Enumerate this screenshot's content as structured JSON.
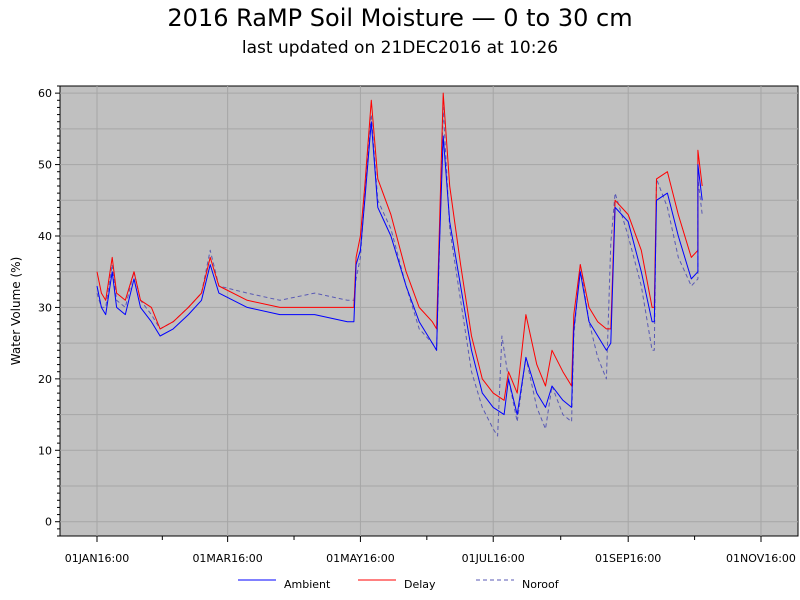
{
  "chart_data": {
    "type": "line",
    "title": "2016 RaMP Soil Moisture — 0 to 30 cm",
    "subtitle": "last updated on 21DEC2016 at 10:26",
    "ylabel": "Water Volume (%)",
    "xlabel": "",
    "xlim": [
      "2015-12-15",
      "2016-11-18"
    ],
    "ylim": [
      -2,
      61
    ],
    "yticks": [
      0,
      10,
      20,
      30,
      40,
      50,
      60
    ],
    "xticks": [
      {
        "date": "2016-01-01",
        "label": "01JAN16:00"
      },
      {
        "date": "2016-03-01",
        "label": "01MAR16:00"
      },
      {
        "date": "2016-05-01",
        "label": "01MAY16:00"
      },
      {
        "date": "2016-07-01",
        "label": "01JUL16:00"
      },
      {
        "date": "2016-09-01",
        "label": "01SEP16:00"
      },
      {
        "date": "2016-11-01",
        "label": "01NOV16:00"
      }
    ],
    "grid": true,
    "legend_position": "bottom",
    "background": "#c0c0c0",
    "series": [
      {
        "name": "Ambient",
        "color": "#0000ff",
        "style": "solid",
        "points": [
          [
            "2016-01-01",
            33
          ],
          [
            "2016-01-03",
            30
          ],
          [
            "2016-01-05",
            29
          ],
          [
            "2016-01-08",
            35
          ],
          [
            "2016-01-10",
            30
          ],
          [
            "2016-01-14",
            29
          ],
          [
            "2016-01-18",
            34
          ],
          [
            "2016-01-21",
            30
          ],
          [
            "2016-01-26",
            28
          ],
          [
            "2016-01-30",
            26
          ],
          [
            "2016-02-05",
            27
          ],
          [
            "2016-02-12",
            29
          ],
          [
            "2016-02-18",
            31
          ],
          [
            "2016-02-22",
            36
          ],
          [
            "2016-02-26",
            32
          ],
          [
            "2016-03-10",
            30
          ],
          [
            "2016-03-25",
            29
          ],
          [
            "2016-04-10",
            29
          ],
          [
            "2016-04-25",
            28
          ],
          [
            "2016-04-28",
            28
          ],
          [
            "2016-04-29",
            36
          ],
          [
            "2016-05-01",
            38
          ],
          [
            "2016-05-03",
            45
          ],
          [
            "2016-05-06",
            56
          ],
          [
            "2016-05-09",
            44
          ],
          [
            "2016-05-15",
            40
          ],
          [
            "2016-05-22",
            33
          ],
          [
            "2016-05-28",
            28
          ],
          [
            "2016-06-03",
            25
          ],
          [
            "2016-06-05",
            24
          ],
          [
            "2016-06-06",
            36
          ],
          [
            "2016-06-08",
            54
          ],
          [
            "2016-06-11",
            42
          ],
          [
            "2016-06-16",
            33
          ],
          [
            "2016-06-21",
            24
          ],
          [
            "2016-06-26",
            18
          ],
          [
            "2016-07-01",
            16
          ],
          [
            "2016-07-06",
            15
          ],
          [
            "2016-07-08",
            20
          ],
          [
            "2016-07-12",
            15
          ],
          [
            "2016-07-16",
            23
          ],
          [
            "2016-07-21",
            18
          ],
          [
            "2016-07-25",
            16
          ],
          [
            "2016-07-28",
            19
          ],
          [
            "2016-08-02",
            17
          ],
          [
            "2016-08-06",
            16
          ],
          [
            "2016-08-07",
            27
          ],
          [
            "2016-08-10",
            35
          ],
          [
            "2016-08-14",
            28
          ],
          [
            "2016-08-18",
            26
          ],
          [
            "2016-08-22",
            24
          ],
          [
            "2016-08-24",
            25
          ],
          [
            "2016-08-26",
            44
          ],
          [
            "2016-09-01",
            42
          ],
          [
            "2016-09-07",
            35
          ],
          [
            "2016-09-12",
            28
          ],
          [
            "2016-09-13",
            28
          ],
          [
            "2016-09-14",
            45
          ],
          [
            "2016-09-19",
            46
          ],
          [
            "2016-09-24",
            40
          ],
          [
            "2016-09-30",
            34
          ],
          [
            "2016-10-03",
            35
          ],
          [
            "2016-10-03",
            50
          ],
          [
            "2016-10-05",
            45
          ]
        ]
      },
      {
        "name": "Delay",
        "color": "#ff0000",
        "style": "solid",
        "points": [
          [
            "2016-01-01",
            35
          ],
          [
            "2016-01-03",
            32
          ],
          [
            "2016-01-05",
            31
          ],
          [
            "2016-01-08",
            37
          ],
          [
            "2016-01-10",
            32
          ],
          [
            "2016-01-14",
            31
          ],
          [
            "2016-01-18",
            35
          ],
          [
            "2016-01-21",
            31
          ],
          [
            "2016-01-26",
            30
          ],
          [
            "2016-01-30",
            27
          ],
          [
            "2016-02-05",
            28
          ],
          [
            "2016-02-12",
            30
          ],
          [
            "2016-02-18",
            32
          ],
          [
            "2016-02-22",
            37
          ],
          [
            "2016-02-26",
            33
          ],
          [
            "2016-03-10",
            31
          ],
          [
            "2016-03-25",
            30
          ],
          [
            "2016-04-10",
            30
          ],
          [
            "2016-04-25",
            30
          ],
          [
            "2016-04-28",
            30
          ],
          [
            "2016-04-29",
            37
          ],
          [
            "2016-05-01",
            40
          ],
          [
            "2016-05-03",
            47
          ],
          [
            "2016-05-06",
            59
          ],
          [
            "2016-05-09",
            48
          ],
          [
            "2016-05-15",
            43
          ],
          [
            "2016-05-22",
            35
          ],
          [
            "2016-05-28",
            30
          ],
          [
            "2016-06-03",
            28
          ],
          [
            "2016-06-05",
            27
          ],
          [
            "2016-06-06",
            38
          ],
          [
            "2016-06-08",
            60
          ],
          [
            "2016-06-11",
            47
          ],
          [
            "2016-06-16",
            36
          ],
          [
            "2016-06-21",
            26
          ],
          [
            "2016-06-26",
            20
          ],
          [
            "2016-07-01",
            18
          ],
          [
            "2016-07-06",
            17
          ],
          [
            "2016-07-08",
            21
          ],
          [
            "2016-07-12",
            18
          ],
          [
            "2016-07-16",
            29
          ],
          [
            "2016-07-21",
            22
          ],
          [
            "2016-07-25",
            19
          ],
          [
            "2016-07-28",
            24
          ],
          [
            "2016-08-02",
            21
          ],
          [
            "2016-08-06",
            19
          ],
          [
            "2016-08-07",
            29
          ],
          [
            "2016-08-10",
            36
          ],
          [
            "2016-08-14",
            30
          ],
          [
            "2016-08-18",
            28
          ],
          [
            "2016-08-22",
            27
          ],
          [
            "2016-08-24",
            27
          ],
          [
            "2016-08-26",
            45
          ],
          [
            "2016-09-01",
            43
          ],
          [
            "2016-09-07",
            38
          ],
          [
            "2016-09-12",
            30
          ],
          [
            "2016-09-13",
            30
          ],
          [
            "2016-09-14",
            48
          ],
          [
            "2016-09-19",
            49
          ],
          [
            "2016-09-24",
            43
          ],
          [
            "2016-09-30",
            37
          ],
          [
            "2016-10-03",
            38
          ],
          [
            "2016-10-03",
            52
          ],
          [
            "2016-10-05",
            47
          ]
        ]
      },
      {
        "name": "Noroof",
        "color": "#5a5ab4",
        "style": "dashed",
        "points": [
          [
            "2016-01-01",
            32
          ],
          [
            "2016-01-03",
            30
          ],
          [
            "2016-01-05",
            30
          ],
          [
            "2016-01-08",
            36
          ],
          [
            "2016-01-10",
            31
          ],
          [
            "2016-01-14",
            30
          ],
          [
            "2016-01-18",
            35
          ],
          [
            "2016-01-21",
            31
          ],
          [
            "2016-01-26",
            29
          ],
          [
            "2016-01-30",
            27
          ],
          [
            "2016-02-05",
            28
          ],
          [
            "2016-02-12",
            30
          ],
          [
            "2016-02-18",
            32
          ],
          [
            "2016-02-22",
            38
          ],
          [
            "2016-02-26",
            33
          ],
          [
            "2016-03-10",
            32
          ],
          [
            "2016-03-25",
            31
          ],
          [
            "2016-04-10",
            32
          ],
          [
            "2016-04-25",
            31
          ],
          [
            "2016-04-28",
            31
          ],
          [
            "2016-04-29",
            34
          ],
          [
            "2016-05-01",
            37
          ],
          [
            "2016-05-03",
            46
          ],
          [
            "2016-05-06",
            57
          ],
          [
            "2016-05-09",
            45
          ],
          [
            "2016-05-15",
            41
          ],
          [
            "2016-05-22",
            33
          ],
          [
            "2016-05-28",
            27
          ],
          [
            "2016-06-03",
            25
          ],
          [
            "2016-06-05",
            24
          ],
          [
            "2016-06-06",
            35
          ],
          [
            "2016-06-08",
            58
          ],
          [
            "2016-06-11",
            41
          ],
          [
            "2016-06-16",
            31
          ],
          [
            "2016-06-21",
            21
          ],
          [
            "2016-06-26",
            16
          ],
          [
            "2016-07-01",
            13
          ],
          [
            "2016-07-03",
            12
          ],
          [
            "2016-07-05",
            26
          ],
          [
            "2016-07-08",
            20
          ],
          [
            "2016-07-12",
            14
          ],
          [
            "2016-07-16",
            23
          ],
          [
            "2016-07-21",
            16
          ],
          [
            "2016-07-25",
            13
          ],
          [
            "2016-07-28",
            19
          ],
          [
            "2016-08-02",
            15
          ],
          [
            "2016-08-06",
            14
          ],
          [
            "2016-08-07",
            26
          ],
          [
            "2016-08-10",
            36
          ],
          [
            "2016-08-14",
            28
          ],
          [
            "2016-08-18",
            23
          ],
          [
            "2016-08-22",
            20
          ],
          [
            "2016-08-24",
            39
          ],
          [
            "2016-08-26",
            46
          ],
          [
            "2016-09-01",
            40
          ],
          [
            "2016-09-07",
            33
          ],
          [
            "2016-09-12",
            24
          ],
          [
            "2016-09-13",
            24
          ],
          [
            "2016-09-14",
            48
          ],
          [
            "2016-09-19",
            44
          ],
          [
            "2016-09-24",
            37
          ],
          [
            "2016-09-30",
            33
          ],
          [
            "2016-10-03",
            34
          ],
          [
            "2016-10-03",
            48
          ],
          [
            "2016-10-05",
            43
          ]
        ]
      }
    ]
  }
}
